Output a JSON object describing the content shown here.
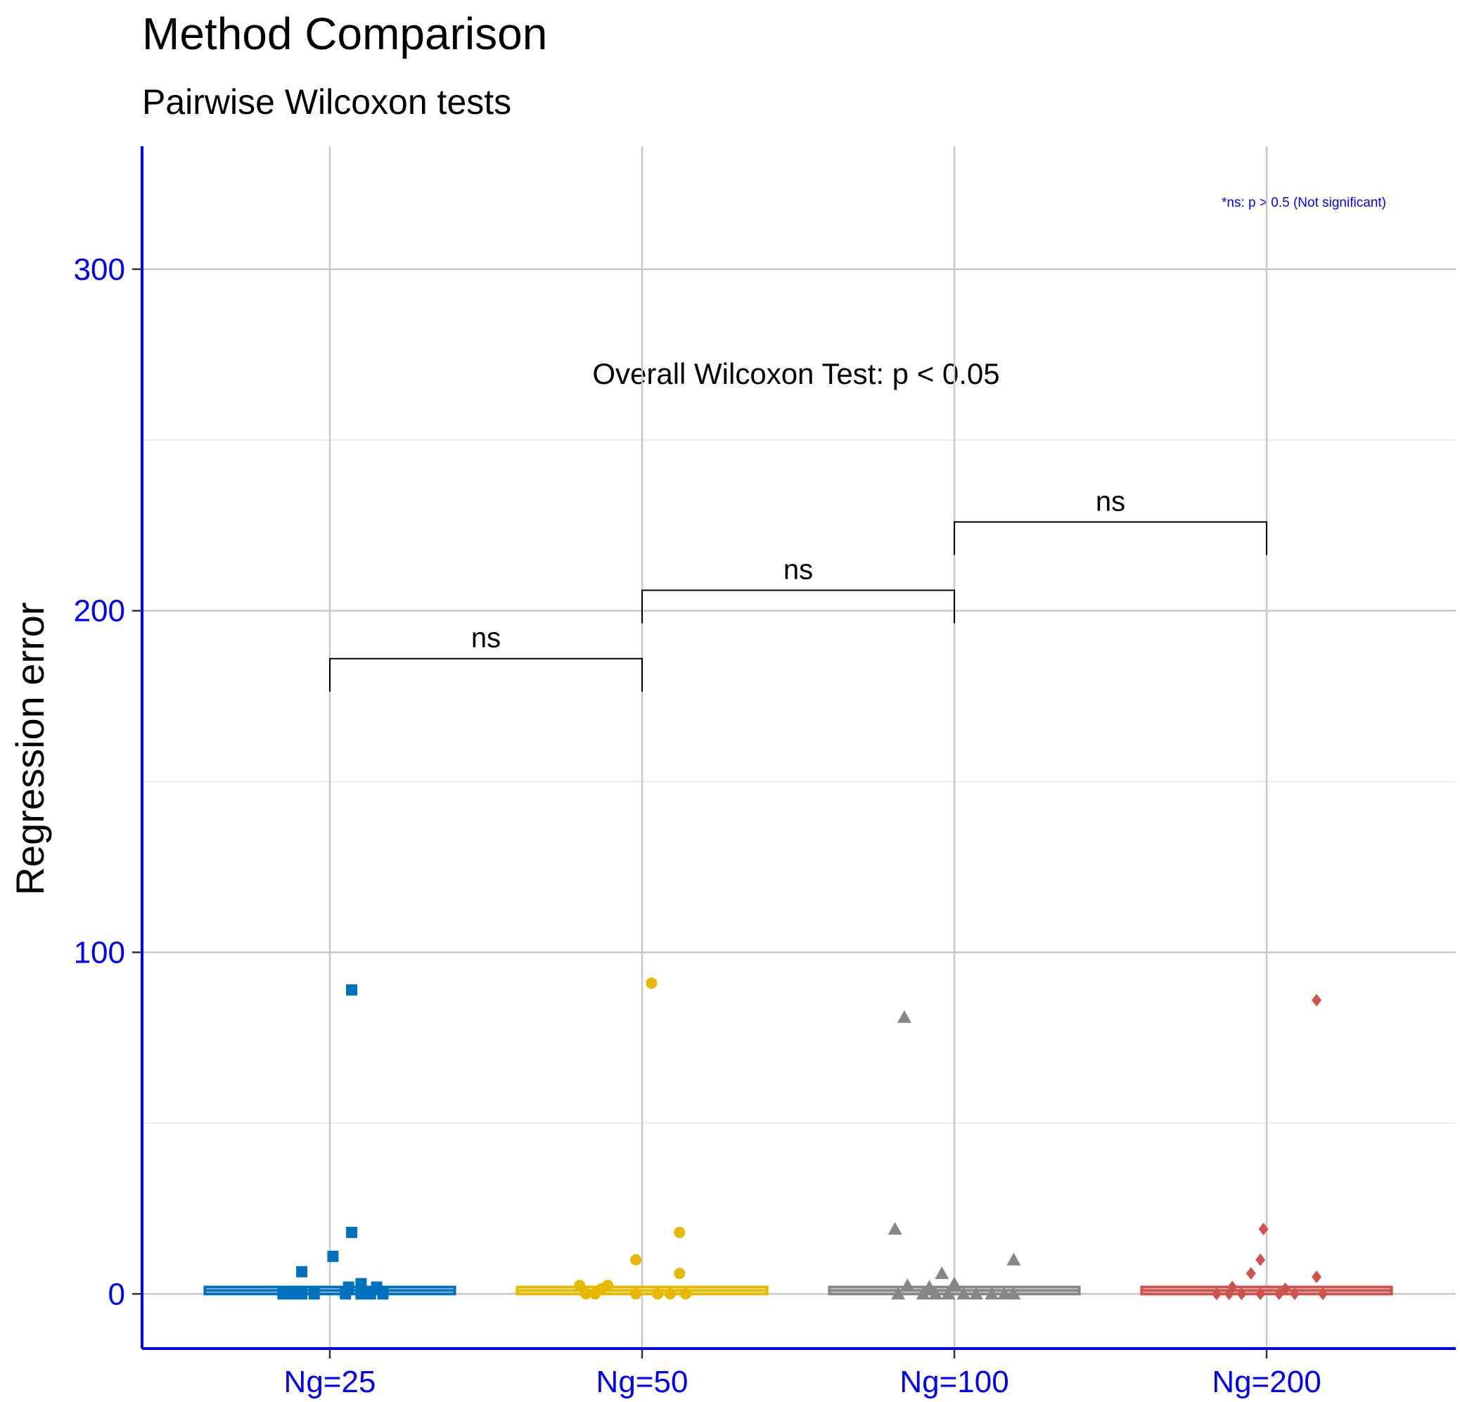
{
  "chart_data": {
    "type": "box_jitter",
    "title": "Method Comparison",
    "subtitle": "Pairwise Wilcoxon tests",
    "ylabel": "Regression error",
    "xlabel": "",
    "ylim": [
      -16,
      336
    ],
    "yticks": [
      0,
      100,
      200,
      300
    ],
    "categories": [
      "Ng=25",
      "Ng=50",
      "Ng=100",
      "Ng=200"
    ],
    "colors": [
      "#0072BD",
      "#E6B800",
      "#868686",
      "#CD534C"
    ],
    "shapes": [
      "square",
      "circle",
      "triangle",
      "diamond"
    ],
    "axis_color": "#0000FF",
    "grid": true,
    "boxes": [
      {
        "q1": 0,
        "median": 1,
        "q3": 2
      },
      {
        "q1": 0,
        "median": 1,
        "q3": 2
      },
      {
        "q1": 0,
        "median": 1,
        "q3": 2
      },
      {
        "q1": 0,
        "median": 1,
        "q3": 2
      }
    ],
    "points": [
      [
        {
          "dx": 0.07,
          "y": 89
        },
        {
          "dx": 0.07,
          "y": 18
        },
        {
          "dx": 0.01,
          "y": 11
        },
        {
          "dx": -0.09,
          "y": 6.5
        },
        {
          "dx": 0.1,
          "y": 3
        },
        {
          "dx": 0.06,
          "y": 2
        },
        {
          "dx": 0.15,
          "y": 2
        },
        {
          "dx": -0.15,
          "y": 0
        },
        {
          "dx": -0.12,
          "y": 0
        },
        {
          "dx": -0.09,
          "y": 0
        },
        {
          "dx": -0.05,
          "y": 0
        },
        {
          "dx": 0.05,
          "y": 0
        },
        {
          "dx": 0.1,
          "y": 0
        },
        {
          "dx": 0.13,
          "y": 0
        },
        {
          "dx": 0.17,
          "y": 0
        }
      ],
      [
        {
          "dx": 0.03,
          "y": 91
        },
        {
          "dx": 0.12,
          "y": 18
        },
        {
          "dx": -0.02,
          "y": 10
        },
        {
          "dx": 0.12,
          "y": 6
        },
        {
          "dx": -0.2,
          "y": 2.5
        },
        {
          "dx": -0.11,
          "y": 2.5
        },
        {
          "dx": -0.13,
          "y": 1.5
        },
        {
          "dx": -0.18,
          "y": 0
        },
        {
          "dx": -0.15,
          "y": 0
        },
        {
          "dx": -0.02,
          "y": 0
        },
        {
          "dx": 0.05,
          "y": 0
        },
        {
          "dx": 0.09,
          "y": 0
        },
        {
          "dx": 0.14,
          "y": 0
        }
      ],
      [
        {
          "dx": -0.16,
          "y": 81
        },
        {
          "dx": -0.19,
          "y": 19
        },
        {
          "dx": 0.19,
          "y": 10
        },
        {
          "dx": -0.04,
          "y": 6
        },
        {
          "dx": -0.15,
          "y": 2.5
        },
        {
          "dx": -0.08,
          "y": 2
        },
        {
          "dx": 0.0,
          "y": 3
        },
        {
          "dx": -0.18,
          "y": 0
        },
        {
          "dx": -0.1,
          "y": 0
        },
        {
          "dx": -0.06,
          "y": 0
        },
        {
          "dx": -0.02,
          "y": 0
        },
        {
          "dx": 0.03,
          "y": 0
        },
        {
          "dx": 0.07,
          "y": 0
        },
        {
          "dx": 0.12,
          "y": 0
        },
        {
          "dx": 0.16,
          "y": 0
        },
        {
          "dx": 0.19,
          "y": 0
        }
      ],
      [
        {
          "dx": 0.16,
          "y": 86
        },
        {
          "dx": -0.01,
          "y": 19
        },
        {
          "dx": -0.02,
          "y": 10
        },
        {
          "dx": 0.16,
          "y": 5
        },
        {
          "dx": -0.05,
          "y": 6
        },
        {
          "dx": -0.11,
          "y": 2
        },
        {
          "dx": 0.06,
          "y": 1.5
        },
        {
          "dx": -0.16,
          "y": 0
        },
        {
          "dx": -0.12,
          "y": 0
        },
        {
          "dx": -0.08,
          "y": 0
        },
        {
          "dx": -0.02,
          "y": 0
        },
        {
          "dx": 0.04,
          "y": 0
        },
        {
          "dx": 0.09,
          "y": 0
        },
        {
          "dx": 0.18,
          "y": 0
        }
      ]
    ],
    "comparisons": [
      {
        "from": 0,
        "to": 1,
        "y": 186,
        "label": "ns"
      },
      {
        "from": 1,
        "to": 2,
        "y": 206,
        "label": "ns"
      },
      {
        "from": 2,
        "to": 3,
        "y": 226,
        "label": "ns"
      }
    ],
    "overall_label": "Overall Wilcoxon Test: p < 0.05",
    "overall_y": 268,
    "note": "*ns: p > 0.5 (Not significant)"
  }
}
